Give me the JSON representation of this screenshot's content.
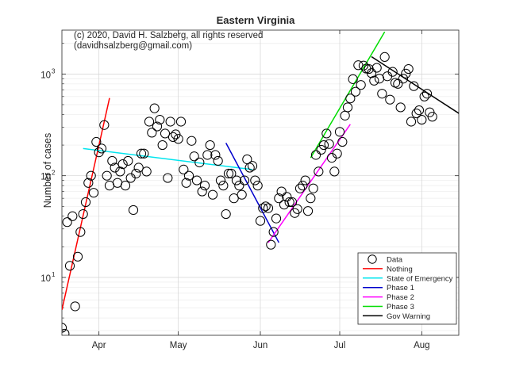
{
  "chart_data": {
    "type": "scatter",
    "title": "Eastern Virginia",
    "ylabel": "Number of cases",
    "xlabel": "",
    "yscale": "log",
    "ylim": [
      2.7,
      2700
    ],
    "xlim_day": [
      -14,
      136
    ],
    "grid": true,
    "legend_position": "bottom-right",
    "annotations": [
      "(c) 2020, David H. Salzberg, all rights reserved",
      "(davidhsalzberg@gmail.com)"
    ],
    "x_ticks": [
      {
        "label": "Apr",
        "day": 0
      },
      {
        "label": "May",
        "day": 30
      },
      {
        "label": "Jun",
        "day": 61
      },
      {
        "label": "Jul",
        "day": 91
      },
      {
        "label": "Aug",
        "day": 122
      }
    ],
    "y_ticks": [
      {
        "value": 10,
        "label_base": "10",
        "label_exp": "1"
      },
      {
        "value": 100,
        "label_base": "10",
        "label_exp": "2"
      },
      {
        "value": 1000,
        "label_base": "10",
        "label_exp": "3"
      }
    ],
    "series": [
      {
        "name": "Data",
        "kind": "points",
        "color": "#000000",
        "points": [
          [
            -14,
            3.2
          ],
          [
            -13,
            2.8
          ],
          [
            -12,
            35
          ],
          [
            -11,
            13
          ],
          [
            -10,
            40
          ],
          [
            -9,
            5.2
          ],
          [
            -8,
            16
          ],
          [
            -7,
            28
          ],
          [
            -6,
            42
          ],
          [
            -5,
            55
          ],
          [
            -4,
            85
          ],
          [
            -3,
            100
          ],
          [
            -2,
            68
          ],
          [
            -1,
            215
          ],
          [
            0,
            170
          ],
          [
            1,
            185
          ],
          [
            2,
            315
          ],
          [
            3,
            100
          ],
          [
            4,
            80
          ],
          [
            5,
            140
          ],
          [
            6,
            120
          ],
          [
            7,
            85
          ],
          [
            8,
            110
          ],
          [
            9,
            130
          ],
          [
            10,
            80
          ],
          [
            11,
            140
          ],
          [
            12,
            95
          ],
          [
            13,
            46
          ],
          [
            14,
            105
          ],
          [
            15,
            120
          ],
          [
            16,
            165
          ],
          [
            17,
            165
          ],
          [
            18,
            110
          ],
          [
            19,
            340
          ],
          [
            20,
            265
          ],
          [
            21,
            460
          ],
          [
            22,
            305
          ],
          [
            23,
            355
          ],
          [
            24,
            200
          ],
          [
            25,
            260
          ],
          [
            26,
            95
          ],
          [
            27,
            340
          ],
          [
            28,
            240
          ],
          [
            29,
            255
          ],
          [
            30,
            230
          ],
          [
            31,
            340
          ],
          [
            32,
            115
          ],
          [
            33,
            85
          ],
          [
            34,
            100
          ],
          [
            35,
            220
          ],
          [
            36,
            155
          ],
          [
            37,
            90
          ],
          [
            38,
            135
          ],
          [
            39,
            70
          ],
          [
            40,
            80
          ],
          [
            41,
            160
          ],
          [
            42,
            200
          ],
          [
            43,
            65
          ],
          [
            44,
            160
          ],
          [
            45,
            140
          ],
          [
            46,
            90
          ],
          [
            47,
            80
          ],
          [
            48,
            42
          ],
          [
            49,
            105
          ],
          [
            50,
            105
          ],
          [
            51,
            60
          ],
          [
            52,
            90
          ],
          [
            53,
            80
          ],
          [
            54,
            65
          ],
          [
            55,
            90
          ],
          [
            56,
            145
          ],
          [
            57,
            120
          ],
          [
            58,
            125
          ],
          [
            59,
            90
          ],
          [
            60,
            80
          ],
          [
            61,
            36
          ],
          [
            62,
            48
          ],
          [
            63,
            50
          ],
          [
            64,
            48
          ],
          [
            65,
            21
          ],
          [
            66,
            28
          ],
          [
            67,
            38
          ],
          [
            68,
            60
          ],
          [
            69,
            70
          ],
          [
            70,
            52
          ],
          [
            71,
            62
          ],
          [
            72,
            55
          ],
          [
            73,
            55
          ],
          [
            74,
            43
          ],
          [
            75,
            47
          ],
          [
            76,
            75
          ],
          [
            77,
            80
          ],
          [
            78,
            90
          ],
          [
            79,
            45
          ],
          [
            80,
            60
          ],
          [
            81,
            75
          ],
          [
            82,
            160
          ],
          [
            83,
            110
          ],
          [
            84,
            180
          ],
          [
            85,
            200
          ],
          [
            86,
            260
          ],
          [
            87,
            205
          ],
          [
            88,
            150
          ],
          [
            89,
            110
          ],
          [
            90,
            165
          ],
          [
            91,
            270
          ],
          [
            92,
            215
          ],
          [
            93,
            390
          ],
          [
            94,
            470
          ],
          [
            95,
            575
          ],
          [
            96,
            890
          ],
          [
            97,
            670
          ],
          [
            98,
            1220
          ],
          [
            99,
            780
          ],
          [
            100,
            1210
          ],
          [
            101,
            1130
          ],
          [
            102,
            1120
          ],
          [
            103,
            1020
          ],
          [
            104,
            860
          ],
          [
            105,
            1150
          ],
          [
            106,
            900
          ],
          [
            107,
            640
          ],
          [
            108,
            1470
          ],
          [
            109,
            950
          ],
          [
            110,
            560
          ],
          [
            111,
            1050
          ],
          [
            112,
            820
          ],
          [
            113,
            800
          ],
          [
            114,
            470
          ],
          [
            115,
            900
          ],
          [
            116,
            1010
          ],
          [
            117,
            1120
          ],
          [
            118,
            340
          ],
          [
            119,
            760
          ],
          [
            120,
            410
          ],
          [
            121,
            440
          ],
          [
            122,
            355
          ],
          [
            123,
            600
          ],
          [
            124,
            640
          ],
          [
            125,
            420
          ],
          [
            126,
            380
          ]
        ]
      },
      {
        "name": "Nothing",
        "kind": "line",
        "color": "#ff0000",
        "points": [
          [
            -14,
            4.8
          ],
          [
            4,
            580
          ]
        ]
      },
      {
        "name": "State of Emergency",
        "kind": "line",
        "color": "#00e5ee",
        "points": [
          [
            -6,
            185
          ],
          [
            58,
            115
          ]
        ]
      },
      {
        "name": "Phase 1",
        "kind": "line",
        "color": "#0000cc",
        "points": [
          [
            48,
            210
          ],
          [
            68,
            22
          ]
        ]
      },
      {
        "name": "Phase 2",
        "kind": "line",
        "color": "#ff00ff",
        "points": [
          [
            64,
            22
          ],
          [
            95,
            320
          ]
        ]
      },
      {
        "name": "Phase 3",
        "kind": "line",
        "color": "#00dd00",
        "points": [
          [
            80,
            150
          ],
          [
            108,
            2600
          ]
        ]
      },
      {
        "name": "Gov Warning",
        "kind": "line",
        "color": "#000000",
        "points": [
          [
            103,
            1480
          ],
          [
            138,
            380
          ]
        ]
      }
    ]
  }
}
